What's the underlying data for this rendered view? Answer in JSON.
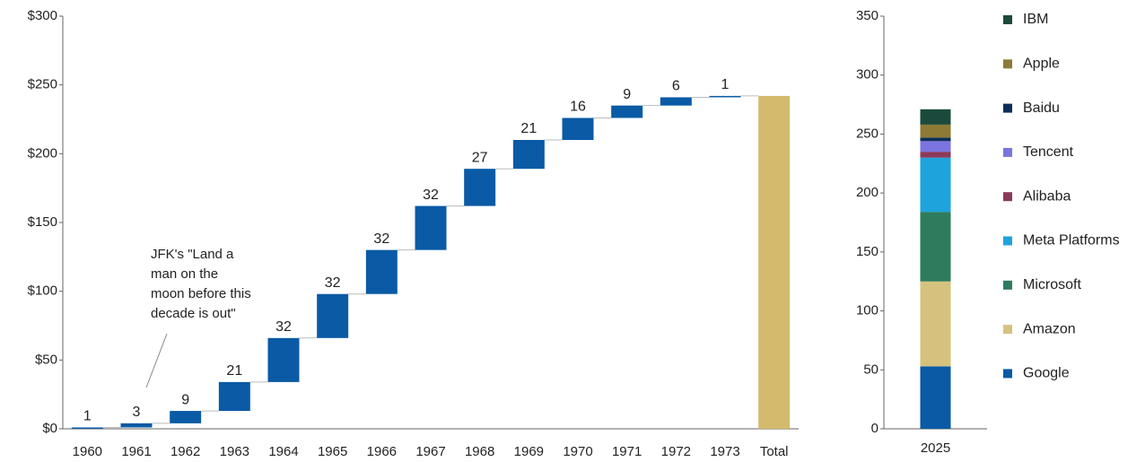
{
  "chart_data": [
    {
      "type": "waterfall",
      "categories": [
        "1960",
        "1961",
        "1962",
        "1963",
        "1964",
        "1965",
        "1966",
        "1967",
        "1968",
        "1969",
        "1970",
        "1971",
        "1972",
        "1973",
        "Total"
      ],
      "values": [
        1,
        3,
        9,
        21,
        32,
        32,
        32,
        32,
        27,
        21,
        16,
        9,
        6,
        1,
        242
      ],
      "measures": [
        "relative",
        "relative",
        "relative",
        "relative",
        "relative",
        "relative",
        "relative",
        "relative",
        "relative",
        "relative",
        "relative",
        "relative",
        "relative",
        "relative",
        "total"
      ],
      "color": "#0a5aa5",
      "total_color": "#d4ba6c",
      "ylim": [
        0,
        300
      ],
      "yticks": [
        {
          "value": 0,
          "label": "$0"
        },
        {
          "value": 50,
          "label": "$50"
        },
        {
          "value": 100,
          "label": "$100"
        },
        {
          "value": 150,
          "label": "$150"
        },
        {
          "value": 200,
          "label": "$200"
        },
        {
          "value": 250,
          "label": "$250"
        },
        {
          "value": 300,
          "label": "$300"
        }
      ],
      "annotation": [
        "JFK's \"Land a",
        "man on the",
        "moon before this",
        "decade is out\""
      ]
    },
    {
      "type": "stacked_bar",
      "categories": [
        "2025"
      ],
      "ylim": [
        0,
        350
      ],
      "yticks": [
        0,
        50,
        100,
        150,
        200,
        250,
        300,
        350
      ],
      "series": [
        {
          "name": "Google",
          "color": "#0a5aa5",
          "values": [
            53
          ]
        },
        {
          "name": "Amazon",
          "color": "#d6c27e",
          "values": [
            72
          ]
        },
        {
          "name": "Microsoft",
          "color": "#2e7b5e",
          "values": [
            59
          ]
        },
        {
          "name": "Meta Platforms",
          "color": "#1fa3dc",
          "values": [
            46
          ]
        },
        {
          "name": "Alibaba",
          "color": "#8b3a5a",
          "values": [
            5
          ]
        },
        {
          "name": "Tencent",
          "color": "#7b74e0",
          "values": [
            9
          ]
        },
        {
          "name": "Baidu",
          "color": "#0b2e59",
          "values": [
            3
          ]
        },
        {
          "name": "Apple",
          "color": "#8c7a35",
          "values": [
            11
          ]
        },
        {
          "name": "IBM",
          "color": "#1b4a3c",
          "values": [
            13
          ]
        }
      ]
    }
  ]
}
